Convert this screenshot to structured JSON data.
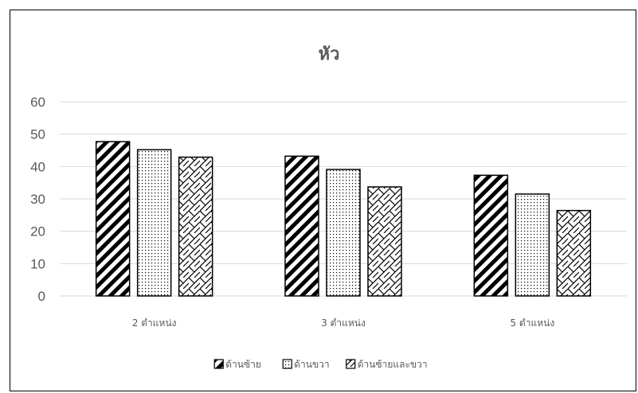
{
  "chart_data": {
    "type": "bar",
    "title": "หัว",
    "categories": [
      "2 ตำแหน่ง",
      "3 ตำแหน่ง",
      "5 ตำแหน่ง"
    ],
    "series": [
      {
        "name": "ด้านซ้าย",
        "pattern": "diagonal-stripes",
        "values": [
          47.7,
          43.2,
          37.3
        ]
      },
      {
        "name": "ด้านขวา",
        "pattern": "dots",
        "values": [
          45.2,
          39.1,
          31.5
        ]
      },
      {
        "name": "ด้านซ้ายและขวา",
        "pattern": "zigzag-hatch",
        "values": [
          42.9,
          33.7,
          26.4
        ]
      }
    ],
    "yticks": [
      "0",
      "10",
      "20",
      "30",
      "40",
      "50",
      "60"
    ],
    "ylim": [
      0,
      60
    ],
    "grid": true,
    "legend_position": "bottom",
    "colors": {
      "bar_stroke": "#000000",
      "gridline": "#d9d9d9",
      "text": "#595959"
    }
  }
}
